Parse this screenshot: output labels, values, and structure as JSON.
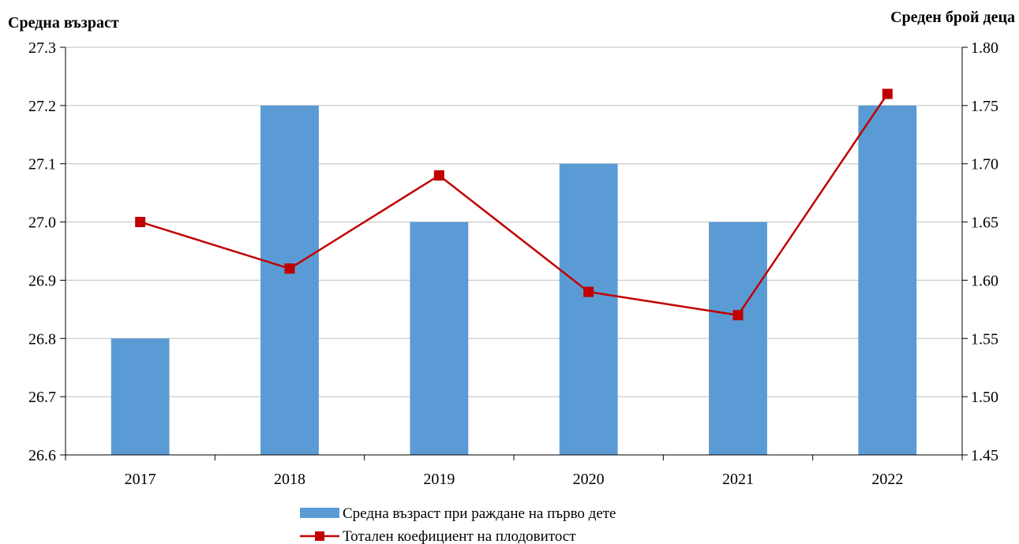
{
  "chart_data": {
    "type": "bar",
    "categories": [
      "2017",
      "2018",
      "2019",
      "2020",
      "2021",
      "2022"
    ],
    "left_axis": {
      "title": "Средна възраст",
      "ylim": [
        26.6,
        27.3
      ],
      "ticks": [
        "27.3",
        "27.2",
        "27.1",
        "27.0",
        "26.9",
        "26.8",
        "26.7",
        "26.6"
      ]
    },
    "right_axis": {
      "title": "Среден брой деца",
      "ylim": [
        1.45,
        1.8
      ],
      "ticks": [
        "1.80",
        "1.75",
        "1.70",
        "1.65",
        "1.60",
        "1.55",
        "1.50",
        "1.45"
      ]
    },
    "series": [
      {
        "name": "Средна възраст при раждане на първо дете",
        "type": "bar",
        "axis": "left",
        "color": "#5B9BD5",
        "values": [
          26.8,
          27.2,
          27.0,
          27.1,
          27.0,
          27.2
        ]
      },
      {
        "name": "Тотален коефициент на плодовитост",
        "type": "line",
        "axis": "right",
        "color": "#C00000",
        "marker": "square",
        "values": [
          1.65,
          1.61,
          1.69,
          1.59,
          1.57,
          1.76
        ]
      }
    ],
    "grid": true,
    "legend_position": "bottom"
  }
}
